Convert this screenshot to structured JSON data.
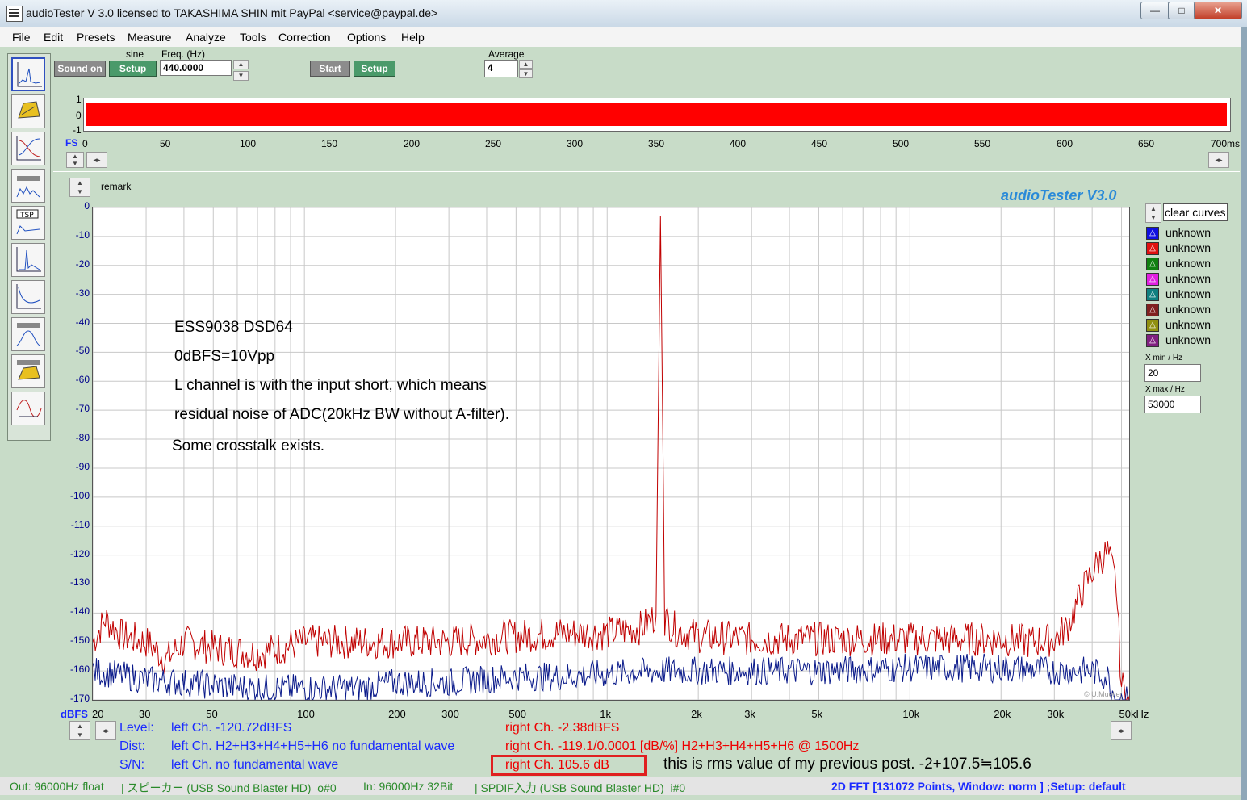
{
  "window": {
    "title": "audioTester  V 3.0    licensed to TAKASHIMA SHIN mit PayPal <service@paypal.de>",
    "min_label": "—",
    "max_label": "□",
    "close_label": "✕"
  },
  "menu": [
    "File",
    "Edit",
    "Presets",
    "Measure",
    "Analyze",
    "Tools",
    "Correction",
    "Options",
    "Help"
  ],
  "generator": {
    "sound_on": "Sound on",
    "waveform": "sine",
    "setup": "Setup",
    "freq_label": "Freq. (Hz)",
    "freq_value": "440.0000"
  },
  "analyzer": {
    "start": "Start",
    "setup": "Setup",
    "average_label": "Average",
    "average_value": "4"
  },
  "scope": {
    "y_labels": [
      "1",
      "0",
      "-1"
    ],
    "x_prefix": "FS",
    "x_ticks": [
      "0",
      "50",
      "100",
      "150",
      "200",
      "250",
      "300",
      "350",
      "400",
      "450",
      "500",
      "550",
      "600",
      "650",
      "700ms"
    ]
  },
  "plot": {
    "remark": "remark",
    "brand": "audioTester  V3.0",
    "copyright": "© U.Mueller",
    "y_unit": "dBFS",
    "y_ticks": [
      "0",
      "-10",
      "-20",
      "-30",
      "-40",
      "-50",
      "-60",
      "-70",
      "-80",
      "-90",
      "-100",
      "-110",
      "-120",
      "-130",
      "-140",
      "-150",
      "-160",
      "-170"
    ],
    "x_ticks": [
      "20",
      "30",
      "50",
      "100",
      "200",
      "300",
      "500",
      "1k",
      "2k",
      "3k",
      "5k",
      "10k",
      "20k",
      "30k",
      "50kHz"
    ],
    "annotations": [
      "ESS9038 DSD64",
      "0dBFS=10Vpp",
      "L channel is with the input short, which means",
      "residual noise of ADC(20kHz BW without A-filter).",
      "Some crosstalk exists."
    ]
  },
  "legend": {
    "clear_label": "clear curves",
    "items": [
      {
        "label": "unknown",
        "color": "#1010e0"
      },
      {
        "label": "unknown",
        "color": "#e01010"
      },
      {
        "label": "unknown",
        "color": "#108010"
      },
      {
        "label": "unknown",
        "color": "#e020e0"
      },
      {
        "label": "unknown",
        "color": "#108080"
      },
      {
        "label": "unknown",
        "color": "#802020"
      },
      {
        "label": "unknown",
        "color": "#909010"
      },
      {
        "label": "unknown",
        "color": "#802080"
      }
    ],
    "xmin_label": "X min / Hz",
    "xmin_value": "20",
    "xmax_label": "X max / Hz",
    "xmax_value": "53000"
  },
  "stats": {
    "level_label": "Level:",
    "level_left": "left Ch. -120.72dBFS",
    "level_right": "right Ch. -2.38dBFS",
    "dist_label": "Dist:",
    "dist_left": "left Ch. H2+H3+H4+H5+H6 no fundamental wave",
    "dist_right": "right Ch. -119.1/0.0001 [dB/%] H2+H3+H4+H5+H6 @ 1500Hz",
    "sn_label": "S/N:",
    "sn_left": "left Ch.  no fundamental wave",
    "sn_right": "right Ch. 105.6 dB",
    "note": "this is rms value of my previous post.  -2+107.5≒105.6"
  },
  "status": {
    "out": "Out: 96000Hz float",
    "out_dev": "| スピーカー (USB Sound Blaster HD)_o#0",
    "in": "In: 96000Hz 32Bit",
    "in_dev": "| SPDIF入力 (USB Sound Blaster HD)_i#0",
    "mode": "2D FFT [131072 Points, Window: norm ]  ;Setup:  default"
  },
  "chart_data": {
    "type": "line",
    "title": "",
    "xlabel": "",
    "ylabel": "dBFS",
    "x_scale": "log",
    "xlim": [
      20,
      53000
    ],
    "ylim": [
      -170,
      0
    ],
    "series": [
      {
        "color": "#c00000",
        "x": [
          20,
          22,
          25,
          30,
          35,
          40,
          50,
          70,
          100,
          150,
          200,
          300,
          500,
          700,
          1000,
          1300,
          1450,
          1500,
          1550,
          1700,
          2000,
          3000,
          4500,
          6000,
          8000,
          10000,
          13000,
          16000,
          20000,
          25000,
          30000,
          33000,
          38000,
          42000,
          45000,
          48000,
          50000,
          53000
        ],
        "y": [
          -150,
          -142,
          -148,
          -150,
          -156,
          -150,
          -152,
          -154,
          -150,
          -150,
          -150,
          -150,
          -148,
          -147,
          -147,
          -145,
          -141,
          -3,
          -142,
          -146,
          -148,
          -149,
          -149,
          -149,
          -149,
          -149,
          -149,
          -149,
          -149,
          -150,
          -149,
          -145,
          -130,
          -122,
          -119,
          -130,
          -165,
          -170
        ]
      },
      {
        "color": "#0a1a8a",
        "x": [
          20,
          30,
          50,
          70,
          100,
          150,
          200,
          300,
          500,
          700,
          1000,
          1500,
          2000,
          3000,
          5000,
          10000,
          20000,
          30000,
          40000,
          45000,
          48000,
          53000
        ],
        "y": [
          -160,
          -163,
          -165,
          -166,
          -166,
          -166,
          -164,
          -164,
          -162,
          -162,
          -161,
          -160,
          -160,
          -160,
          -160,
          -159,
          -159,
          -160,
          -160,
          -162,
          -170,
          -170
        ]
      }
    ],
    "grid": true
  }
}
